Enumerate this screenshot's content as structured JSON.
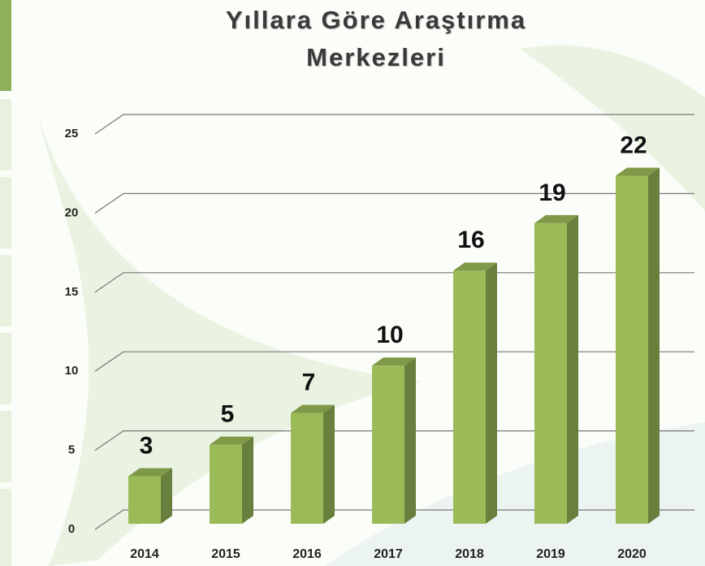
{
  "chart_data": {
    "type": "bar3d",
    "title": "Yıllara Göre Araştırma Merkezleri",
    "categories": [
      "2014",
      "2015",
      "2016",
      "2017",
      "2018",
      "2019",
      "2020"
    ],
    "values": [
      3,
      5,
      7,
      10,
      16,
      19,
      22
    ],
    "color": "#9bbb59",
    "ylim": [
      0,
      25
    ],
    "yticks": [
      0,
      5,
      10,
      15,
      20,
      25
    ],
    "grid": true
  }
}
